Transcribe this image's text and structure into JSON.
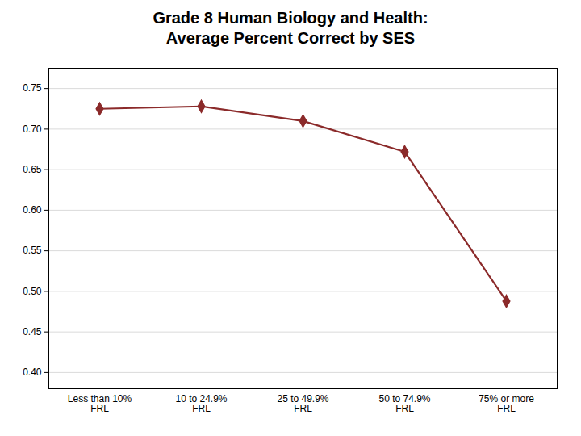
{
  "chart_data": {
    "type": "line",
    "title": "Grade 8 Human Biology and Health:\nAverage Percent Correct by SES",
    "categories": [
      "Less than 10%\nFRL",
      "10 to 24.9%\nFRL",
      "25 to 49.9%\nFRL",
      "50 to 74.9%\nFRL",
      "75% or more\nFRL"
    ],
    "values": [
      0.725,
      0.728,
      0.71,
      0.672,
      0.488
    ],
    "color": "#8b2a2a",
    "marker": "diamond",
    "ylim": [
      0.38,
      0.775
    ],
    "yticks": [
      {
        "value": 0.4,
        "label": "0.40"
      },
      0.45,
      {
        "value": 0.5,
        "label": "0.50"
      },
      0.55,
      {
        "value": 0.6,
        "label": "0.60"
      },
      0.65,
      {
        "value": 0.7,
        "label": "0.70"
      },
      0.75
    ],
    "grid": true
  }
}
